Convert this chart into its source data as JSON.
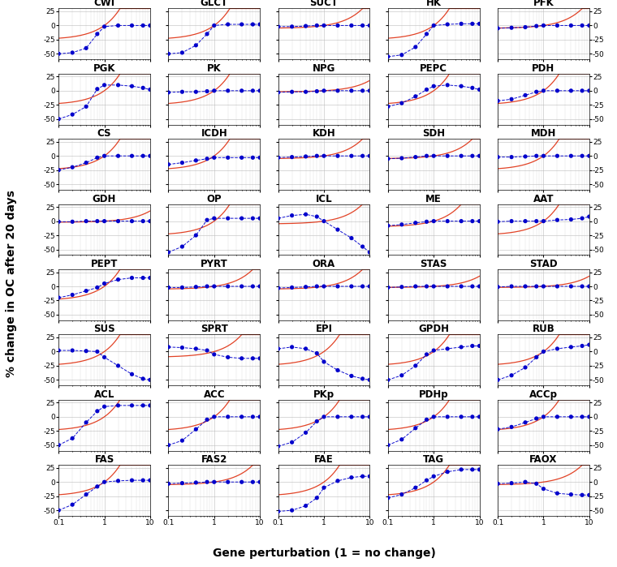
{
  "subplots": [
    {
      "name": "CWI",
      "row": 0,
      "col": 0,
      "blue_y": [
        -50,
        -48,
        -40,
        -15,
        -2,
        0,
        0,
        0,
        0
      ],
      "red_scale": 25
    },
    {
      "name": "GLCT",
      "row": 0,
      "col": 1,
      "blue_y": [
        -50,
        -48,
        -35,
        -15,
        0,
        2,
        2,
        2,
        2
      ],
      "red_scale": 25
    },
    {
      "name": "SUCT",
      "row": 0,
      "col": 2,
      "blue_y": [
        -2,
        -2,
        -1,
        0,
        0,
        0,
        0,
        0,
        0
      ],
      "red_scale": 5
    },
    {
      "name": "HK",
      "row": 0,
      "col": 3,
      "blue_y": [
        -55,
        -52,
        -38,
        -15,
        0,
        2,
        3,
        3,
        3
      ],
      "red_scale": 25
    },
    {
      "name": "PFK",
      "row": 0,
      "col": 4,
      "blue_y": [
        -5,
        -4,
        -3,
        -1,
        0,
        0,
        0,
        0,
        0
      ],
      "red_scale": 5
    },
    {
      "name": "PGK",
      "row": 1,
      "col": 0,
      "blue_y": [
        -50,
        -42,
        -28,
        3,
        10,
        10,
        8,
        5,
        2
      ],
      "red_scale": 25
    },
    {
      "name": "PK",
      "row": 1,
      "col": 1,
      "blue_y": [
        -3,
        -2,
        -2,
        -1,
        0,
        0,
        0,
        0,
        0
      ],
      "red_scale": 25
    },
    {
      "name": "NPG",
      "row": 1,
      "col": 2,
      "blue_y": [
        -3,
        -2,
        -2,
        -1,
        0,
        0,
        0,
        0,
        0
      ],
      "red_scale": 2
    },
    {
      "name": "PEPC",
      "row": 1,
      "col": 3,
      "blue_y": [
        -28,
        -22,
        -10,
        2,
        8,
        10,
        8,
        5,
        2
      ],
      "red_scale": 25
    },
    {
      "name": "PDH",
      "row": 1,
      "col": 4,
      "blue_y": [
        -18,
        -15,
        -8,
        -2,
        0,
        0,
        0,
        0,
        0
      ],
      "red_scale": 25
    },
    {
      "name": "CS",
      "row": 2,
      "col": 0,
      "blue_y": [
        -25,
        -20,
        -12,
        -3,
        0,
        0,
        0,
        0,
        0
      ],
      "red_scale": 25
    },
    {
      "name": "ICDH",
      "row": 2,
      "col": 1,
      "blue_y": [
        -15,
        -12,
        -8,
        -5,
        -3,
        -3,
        -3,
        -3,
        -3
      ],
      "red_scale": 25
    },
    {
      "name": "KDH",
      "row": 2,
      "col": 2,
      "blue_y": [
        -3,
        -2,
        -1,
        0,
        0,
        0,
        0,
        0,
        0
      ],
      "red_scale": 5
    },
    {
      "name": "SDH",
      "row": 2,
      "col": 3,
      "blue_y": [
        -5,
        -4,
        -2,
        0,
        0,
        0,
        0,
        0,
        0
      ],
      "red_scale": 5
    },
    {
      "name": "MDH",
      "row": 2,
      "col": 4,
      "blue_y": [
        -2,
        -2,
        -1,
        0,
        0,
        0,
        0,
        0,
        0
      ],
      "red_scale": 25
    },
    {
      "name": "GDH",
      "row": 3,
      "col": 0,
      "blue_y": [
        -1,
        -1,
        0,
        0,
        0,
        0,
        0,
        0,
        0
      ],
      "red_scale": 2
    },
    {
      "name": "OP",
      "row": 3,
      "col": 1,
      "blue_y": [
        -55,
        -45,
        -25,
        2,
        5,
        5,
        5,
        5,
        5
      ],
      "red_scale": 25
    },
    {
      "name": "ICL",
      "row": 3,
      "col": 2,
      "blue_y": [
        5,
        10,
        12,
        8,
        0,
        -15,
        -30,
        -45,
        -55
      ],
      "red_scale": 5
    },
    {
      "name": "ME",
      "row": 3,
      "col": 3,
      "blue_y": [
        -8,
        -6,
        -3,
        -1,
        0,
        0,
        0,
        0,
        0
      ],
      "red_scale": 10
    },
    {
      "name": "AAT",
      "row": 3,
      "col": 4,
      "blue_y": [
        -1,
        0,
        0,
        0,
        0,
        2,
        3,
        5,
        8
      ],
      "red_scale": 25
    },
    {
      "name": "PEPT",
      "row": 4,
      "col": 0,
      "blue_y": [
        -20,
        -15,
        -8,
        -2,
        5,
        12,
        15,
        15,
        15
      ],
      "red_scale": 25
    },
    {
      "name": "PYRT",
      "row": 4,
      "col": 1,
      "blue_y": [
        -2,
        -2,
        -1,
        0,
        0,
        0,
        0,
        0,
        0
      ],
      "red_scale": 5
    },
    {
      "name": "ORA",
      "row": 4,
      "col": 2,
      "blue_y": [
        -3,
        -2,
        -1,
        0,
        0,
        0,
        0,
        0,
        0
      ],
      "red_scale": 5
    },
    {
      "name": "STAS",
      "row": 4,
      "col": 3,
      "blue_y": [
        -2,
        -1,
        0,
        0,
        0,
        0,
        0,
        0,
        0
      ],
      "red_scale": 2
    },
    {
      "name": "STAD",
      "row": 4,
      "col": 4,
      "blue_y": [
        -1,
        0,
        0,
        0,
        0,
        0,
        0,
        0,
        0
      ],
      "red_scale": 2
    },
    {
      "name": "SUS",
      "row": 5,
      "col": 0,
      "blue_y": [
        2,
        2,
        1,
        0,
        -10,
        -25,
        -40,
        -48,
        -50
      ],
      "red_scale": 25
    },
    {
      "name": "SPRT",
      "row": 5,
      "col": 1,
      "blue_y": [
        8,
        7,
        5,
        2,
        -5,
        -10,
        -12,
        -12,
        -12
      ],
      "red_scale": 10
    },
    {
      "name": "EPI",
      "row": 5,
      "col": 2,
      "blue_y": [
        5,
        8,
        5,
        -3,
        -18,
        -33,
        -43,
        -48,
        -50
      ],
      "red_scale": 25
    },
    {
      "name": "GPDH",
      "row": 5,
      "col": 3,
      "blue_y": [
        -50,
        -42,
        -25,
        -5,
        2,
        5,
        8,
        10,
        10
      ],
      "red_scale": 25
    },
    {
      "name": "RUB",
      "row": 5,
      "col": 4,
      "blue_y": [
        -50,
        -42,
        -28,
        -10,
        0,
        5,
        8,
        10,
        12
      ],
      "red_scale": 25
    },
    {
      "name": "ACL",
      "row": 6,
      "col": 0,
      "blue_y": [
        -50,
        -38,
        -10,
        10,
        18,
        20,
        20,
        20,
        20
      ],
      "red_scale": 25
    },
    {
      "name": "ACC",
      "row": 6,
      "col": 1,
      "blue_y": [
        -50,
        -42,
        -22,
        -5,
        0,
        0,
        0,
        0,
        0
      ],
      "red_scale": 25
    },
    {
      "name": "PKp",
      "row": 6,
      "col": 2,
      "blue_y": [
        -52,
        -45,
        -28,
        -8,
        0,
        0,
        0,
        0,
        0
      ],
      "red_scale": 25
    },
    {
      "name": "PDHp",
      "row": 6,
      "col": 3,
      "blue_y": [
        -50,
        -40,
        -20,
        -5,
        0,
        0,
        0,
        0,
        0
      ],
      "red_scale": 25
    },
    {
      "name": "ACCp",
      "row": 6,
      "col": 4,
      "blue_y": [
        -22,
        -18,
        -10,
        -3,
        0,
        0,
        0,
        0,
        0
      ],
      "red_scale": 25
    },
    {
      "name": "FAS",
      "row": 7,
      "col": 0,
      "blue_y": [
        -50,
        -40,
        -22,
        -8,
        0,
        2,
        3,
        3,
        3
      ],
      "red_scale": 25
    },
    {
      "name": "FAS2",
      "row": 7,
      "col": 1,
      "blue_y": [
        -3,
        -2,
        -1,
        0,
        0,
        0,
        0,
        0,
        0
      ],
      "red_scale": 5
    },
    {
      "name": "FAE",
      "row": 7,
      "col": 2,
      "blue_y": [
        -52,
        -50,
        -42,
        -28,
        -10,
        2,
        8,
        10,
        10
      ],
      "red_scale": 25
    },
    {
      "name": "TAG",
      "row": 7,
      "col": 3,
      "blue_y": [
        -28,
        -22,
        -10,
        3,
        10,
        18,
        22,
        22,
        22
      ],
      "red_scale": 25
    },
    {
      "name": "FAOX",
      "row": 7,
      "col": 4,
      "blue_y": [
        -3,
        -2,
        0,
        -3,
        -12,
        -20,
        -22,
        -23,
        -23
      ],
      "red_scale": 5
    }
  ],
  "x_vals": [
    0.1,
    0.2,
    0.4,
    0.7,
    1.0,
    2.0,
    4.0,
    7.0,
    10.0
  ],
  "ylim": [
    -60,
    30
  ],
  "yticks": [
    -50,
    -25,
    0,
    25
  ],
  "xlabel": "Gene perturbation (1 = no change)",
  "ylabel": "% change in OC after 20 days",
  "dot_color": "#0000cc",
  "line_color": "#0000cc",
  "red_color": "#dd2200",
  "nrows": 8,
  "ncols": 5,
  "title_fontsize": 8.5,
  "axis_fontsize": 6.5,
  "label_fontsize": 10
}
